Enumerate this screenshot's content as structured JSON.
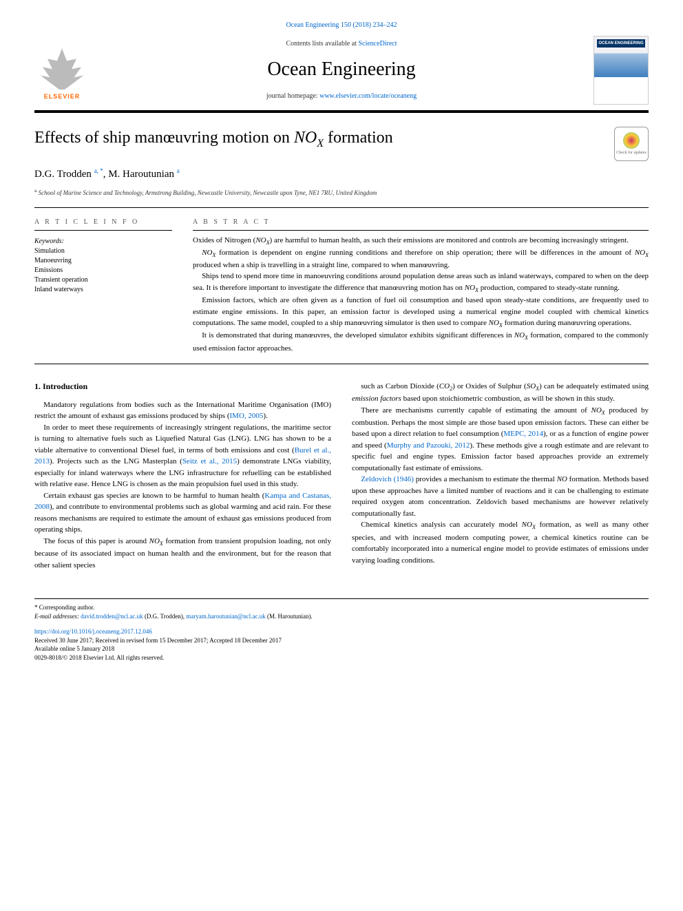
{
  "citation": "Ocean Engineering 150 (2018) 234–242",
  "banner": {
    "elsevier": "ELSEVIER",
    "contents_prefix": "Contents lists available at ",
    "contents_link": "ScienceDirect",
    "journal_name": "Ocean Engineering",
    "homepage_prefix": "journal homepage: ",
    "homepage_link": "www.elsevier.com/locate/oceaneng",
    "cover_label": "OCEAN ENGINEERING"
  },
  "article": {
    "title_html": "Effects of ship manœuvring motion on <em>NO<sub>X</sub></em> formation",
    "check_updates": "Check for updates",
    "authors_html": "D.G. Trodden <sup>a, *</sup>, M. Haroutunian <sup>a</sup>",
    "affiliation_html": "<sup>a</sup> School of Marine Science and Technology, Armstrong Building, Newcastle University, Newcastle upon Tyne, NE1 7RU, United Kingdom"
  },
  "info": {
    "label": "A R T I C L E  I N F O",
    "keywords_label": "Keywords:",
    "keywords": [
      "Simulation",
      "Manoeuvring",
      "Emissions",
      "Transient operation",
      "Inland waterways"
    ]
  },
  "abstract": {
    "label": "A B S T R A C T",
    "paragraphs": [
      "Oxides of Nitrogen (<em>NO<sub>X</sub></em>) are harmful to human health, as such their emissions are monitored and controls are becoming increasingly stringent.",
      "<em>NO<sub>X</sub></em> formation is dependent on engine running conditions and therefore on ship operation; there will be differences in the amount of <em>NO<sub>X</sub></em> produced when a ship is travelling in a straight line, compared to when manœuvring.",
      "Ships tend to spend more time in manoeuvring conditions around population dense areas such as inland waterways, compared to when on the deep sea. It is therefore important to investigate the difference that manœuvring motion has on <em>NO<sub>X</sub></em> production, compared to steady-state running.",
      "Emission factors, which are often given as a function of fuel oil consumption and based upon steady-state conditions, are frequently used to estimate engine emissions. In this paper, an emission factor is developed using a numerical engine model coupled with chemical kinetics computations. The same model, coupled to a ship manœuvring simulator is then used to compare <em>NO<sub>X</sub></em> formation during manœuvring operations.",
      "It is demonstrated that during manœuvres, the developed simulator exhibits significant differences in <em>NO<sub>X</sub></em> formation, compared to the commonly used emission factor approaches."
    ]
  },
  "body": {
    "heading": "1. Introduction",
    "left_paragraphs": [
      "Mandatory regulations from bodies such as the International Maritime Organisation (IMO) restrict the amount of exhaust gas emissions produced by ships (<a>IMO, 2005</a>).",
      "In order to meet these requirements of increasingly stringent regulations, the maritime sector is turning to alternative fuels such as Liquefied Natural Gas (LNG). LNG has shown to be a viable alternative to conventional Diesel fuel, in terms of both emissions and cost (<a>Burel et al., 2013</a>). Projects such as the LNG Masterplan (<a>Seitz et al., 2015</a>) demonstrate LNGs viability, especially for inland waterways where the LNG infrastructure for refuelling can be established with relative ease. Hence LNG is chosen as the main propulsion fuel used in this study.",
      "Certain exhaust gas species are known to be harmful to human health (<a>Kampa and Castanas, 2008</a>), and contribute to environmental problems such as global warming and acid rain. For these reasons mechanisms are required to estimate the amount of exhaust gas emissions produced from operating ships.",
      "The focus of this paper is around <em>NO<sub>X</sub></em> formation from transient propulsion loading, not only because of its associated impact on human health and the environment, but for the reason that other salient species"
    ],
    "right_paragraphs": [
      "such as Carbon Dioxide (<em>CO<sub>2</sub></em>) or Oxides of Sulphur (<em>SO<sub>X</sub></em>) can be adequately estimated using <em>emission factors</em> based upon stoichiometric combustion, as will be shown in this study.",
      "There are mechanisms currently capable of estimating the amount of <em>NO<sub>X</sub></em> produced by combustion. Perhaps the most simple are those based upon emission factors. These can either be based upon a direct relation to fuel consumption (<a>MEPC, 2014</a>), or as a function of engine power and speed (<a>Murphy and Pazouki, 2012</a>). These methods give a rough estimate and are relevant to specific fuel and engine types. Emission factor based approaches provide an extremely computationally fast estimate of emissions.",
      "<a>Zeldovich (1946)</a> provides a mechanism to estimate the thermal <em>NO</em> formation. Methods based upon these approaches have a limited number of reactions and it can be challenging to estimate required oxygen atom concentration. Zeldovich based mechanisms are however relatively computationally fast.",
      "Chemical kinetics analysis can accurately model <em>NO<sub>X</sub></em> formation, as well as many other species, and with increased modern computing power, a chemical kinetics routine can be comfortably incorporated into a numerical engine model to provide estimates of emissions under varying loading conditions."
    ]
  },
  "footnotes": {
    "corresponding": "* Corresponding author.",
    "emails_html": "<em>E-mail addresses:</em> <a>david.trodden@ncl.ac.uk</a> (D.G. Trodden), <a>maryam.haroutunian@ncl.ac.uk</a> (M. Haroutunian)."
  },
  "doi": {
    "link": "https://doi.org/10.1016/j.oceaneng.2017.12.046",
    "received": "Received 30 June 2017; Received in revised form 15 December 2017; Accepted 18 December 2017",
    "available": "Available online 5 January 2018",
    "copyright": "0029-8018/© 2018 Elsevier Ltd. All rights reserved."
  },
  "colors": {
    "link": "#0066cc",
    "elsevier_orange": "#ff6600",
    "text": "#000000",
    "background": "#ffffff"
  },
  "typography": {
    "body_font": "Georgia, Times New Roman, serif",
    "title_fontsize": 24,
    "journal_fontsize": 28,
    "body_fontsize": 11,
    "footnote_fontsize": 9
  }
}
